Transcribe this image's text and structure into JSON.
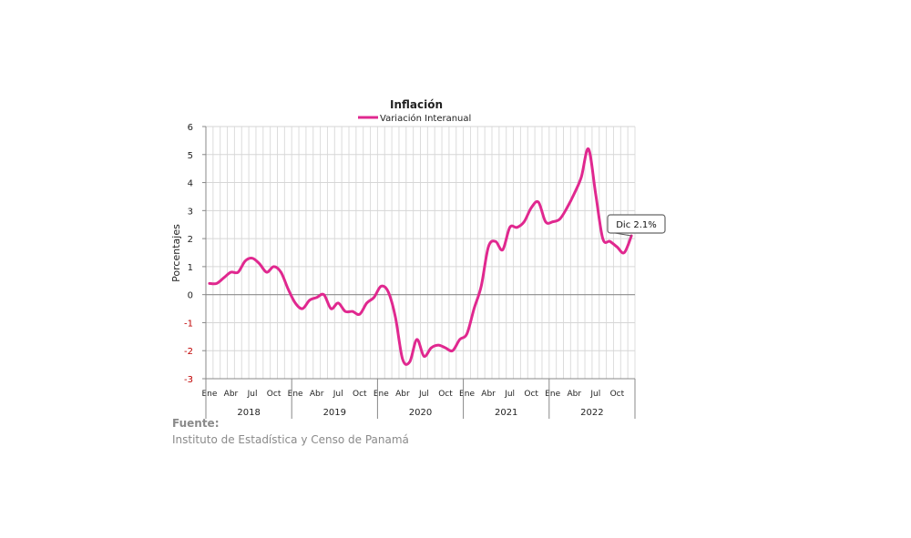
{
  "chart_data": {
    "type": "line",
    "title": "Inflación",
    "ylabel": "Porcentajes",
    "ylim": [
      -3,
      6
    ],
    "yticks": [
      6,
      5,
      4,
      3,
      2,
      1,
      0,
      -1,
      -2,
      -3
    ],
    "grid": true,
    "legend_position": "top-center",
    "month_ticks": [
      "Ene",
      "Abr",
      "Jul",
      "Oct"
    ],
    "years": [
      "2018",
      "2019",
      "2020",
      "2021",
      "2022"
    ],
    "series": [
      {
        "name": "Variación Interanual",
        "color": "#e0288f",
        "values": [
          0.4,
          0.4,
          0.6,
          0.8,
          0.8,
          1.2,
          1.3,
          1.1,
          0.8,
          1.0,
          0.8,
          0.2,
          -0.3,
          -0.5,
          -0.2,
          -0.1,
          0.0,
          -0.5,
          -0.3,
          -0.6,
          -0.6,
          -0.7,
          -0.3,
          -0.1,
          0.3,
          0.1,
          -0.8,
          -2.3,
          -2.4,
          -1.6,
          -2.2,
          -1.9,
          -1.8,
          -1.9,
          -2.0,
          -1.6,
          -1.4,
          -0.5,
          0.3,
          1.7,
          1.9,
          1.6,
          2.4,
          2.4,
          2.6,
          3.1,
          3.3,
          2.6,
          2.6,
          2.7,
          3.1,
          3.6,
          4.2,
          5.2,
          3.6,
          2.0,
          1.9,
          1.7,
          1.5,
          2.1
        ]
      }
    ],
    "annotation": "Dic 2.1%"
  },
  "source": {
    "label": "Fuente:",
    "text": "Instituto de Estadística y Censo de Panamá"
  }
}
